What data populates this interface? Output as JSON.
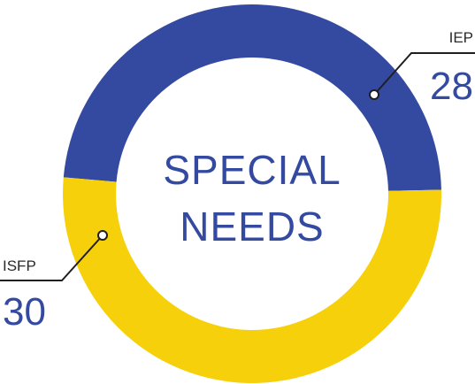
{
  "chart_data": {
    "type": "pie",
    "donut": true,
    "center_title_lines": [
      "SPECIAL",
      "NEEDS"
    ],
    "categories": [
      "IEP",
      "ISFP"
    ],
    "values": [
      28,
      30
    ],
    "colors": [
      "#344aa1",
      "#f6d10b"
    ],
    "label_color": "#344aa1",
    "legend": "none"
  }
}
